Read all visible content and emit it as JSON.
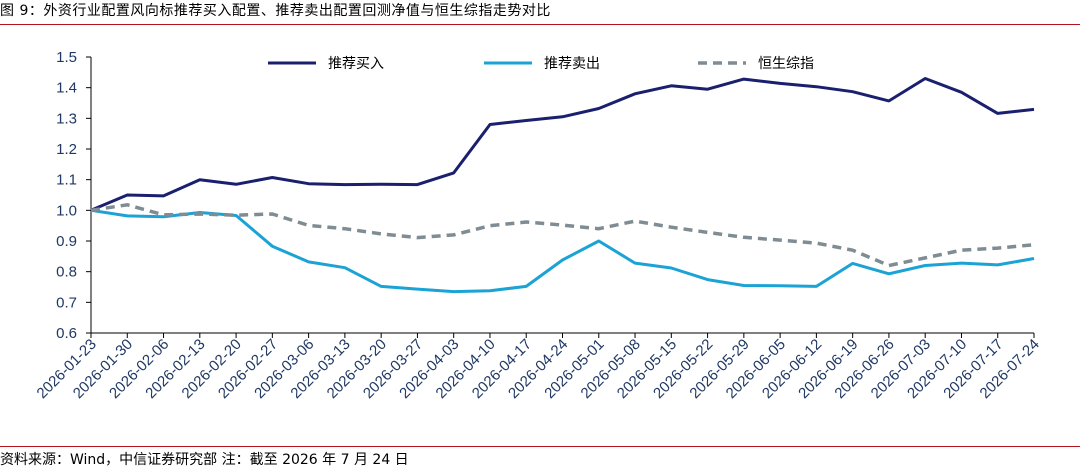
{
  "page": {
    "title": "图 9：外资行业配置风向标推荐买入配置、推荐卖出配置回测净值与恒生综指走势对比",
    "source": "资料来源：Wind，中信证券研究部 注：截至 2026 年 7 月 24 日"
  },
  "chart_data": {
    "type": "line",
    "categories": [
      "2026-01-23",
      "2026-01-30",
      "2026-02-06",
      "2026-02-13",
      "2026-02-20",
      "2026-02-27",
      "2026-03-06",
      "2026-03-13",
      "2026-03-20",
      "2026-03-27",
      "2026-04-03",
      "2026-04-10",
      "2026-04-17",
      "2026-04-24",
      "2026-05-01",
      "2026-05-08",
      "2026-05-15",
      "2026-05-22",
      "2026-05-29",
      "2026-06-05",
      "2026-06-12",
      "2026-06-19",
      "2026-06-26",
      "2026-07-03",
      "2026-07-10",
      "2026-07-17",
      "2026-07-24"
    ],
    "ylim": [
      0.6,
      1.5
    ],
    "yticks": [
      "0.6",
      "0.7",
      "0.8",
      "0.9",
      "1.0",
      "1.1",
      "1.2",
      "1.3",
      "1.4",
      "1.5"
    ],
    "legend_position": "top",
    "grid": false,
    "series": [
      {
        "name": "推荐买入",
        "color": "#1a1f6e",
        "dash": "solid",
        "values": [
          1.0,
          1.05,
          1.047,
          1.1,
          1.085,
          1.107,
          1.087,
          1.084,
          1.085,
          1.084,
          1.122,
          1.28,
          1.293,
          1.305,
          1.332,
          1.38,
          1.406,
          1.395,
          1.428,
          1.414,
          1.403,
          1.387,
          1.357,
          1.43,
          1.385,
          1.316,
          1.329
        ]
      },
      {
        "name": "推荐卖出",
        "color": "#1aa3d4",
        "dash": "solid",
        "values": [
          1.0,
          0.982,
          0.979,
          0.993,
          0.983,
          0.883,
          0.832,
          0.813,
          0.752,
          0.743,
          0.735,
          0.738,
          0.752,
          0.838,
          0.9,
          0.828,
          0.812,
          0.774,
          0.755,
          0.754,
          0.752,
          0.827,
          0.793,
          0.82,
          0.828,
          0.822,
          0.843
        ]
      },
      {
        "name": "恒生综指",
        "color": "#7f8c94",
        "dash": "dashed",
        "values": [
          1.0,
          1.018,
          0.985,
          0.988,
          0.984,
          0.988,
          0.951,
          0.94,
          0.923,
          0.911,
          0.92,
          0.95,
          0.962,
          0.952,
          0.94,
          0.965,
          0.945,
          0.928,
          0.912,
          0.903,
          0.893,
          0.87,
          0.82,
          0.845,
          0.87,
          0.877,
          0.888
        ]
      }
    ]
  }
}
